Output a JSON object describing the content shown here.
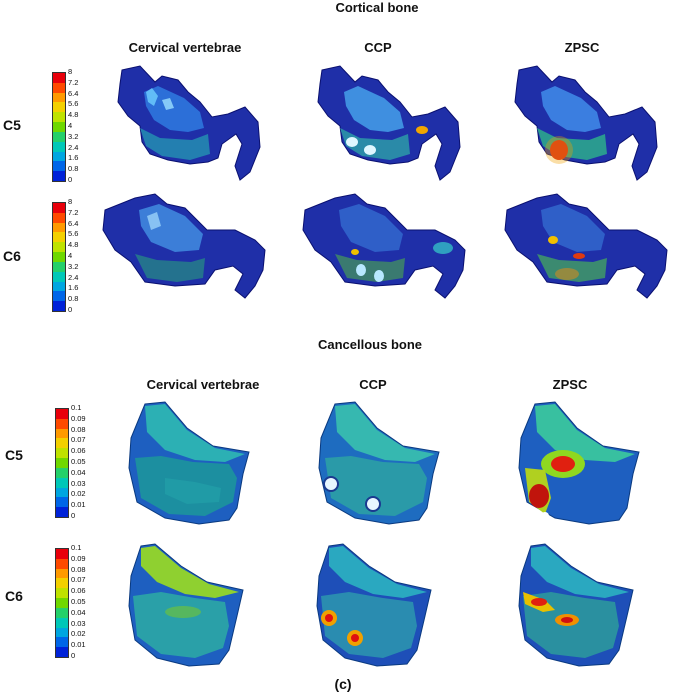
{
  "cortical": {
    "title": "Cortical bone",
    "columns": [
      "Cervical vertebrae",
      "CCP",
      "ZPSC"
    ],
    "rows": [
      "C5",
      "C6"
    ],
    "legend_ticks": [
      "8",
      "7.2",
      "6.4",
      "5.6",
      "4.8",
      "4",
      "3.2",
      "2.4",
      "1.6",
      "0.8",
      "0"
    ]
  },
  "cancellous": {
    "title": "Cancellous bone",
    "columns": [
      "Cervical vertebrae",
      "CCP",
      "ZPSC"
    ],
    "rows": [
      "C5",
      "C6"
    ],
    "legend_ticks": [
      "0.1",
      "0.09",
      "0.08",
      "0.07",
      "0.06",
      "0.05",
      "0.04",
      "0.03",
      "0.02",
      "0.01",
      "0"
    ]
  },
  "caption": "(c)",
  "legend_colors": [
    "#e8000b",
    "#ff4a00",
    "#ff9a00",
    "#f3d000",
    "#bfe200",
    "#6fd800",
    "#24d06a",
    "#00c8b8",
    "#00a6e0",
    "#0066e8",
    "#0022d8"
  ]
}
